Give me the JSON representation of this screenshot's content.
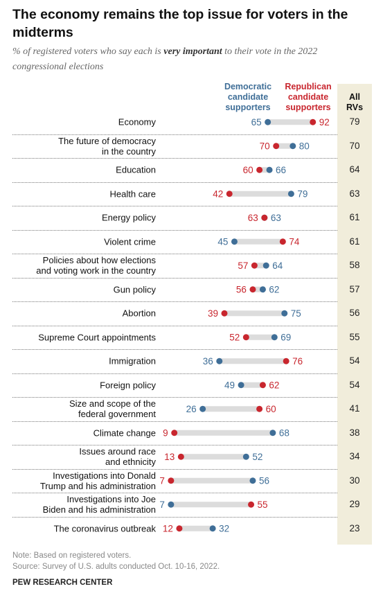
{
  "chart_data": {
    "type": "dumbbell",
    "title": "The economy remains the top issue for voters in the midterms",
    "subtitle": [
      "% of registered voters who say each is ",
      "very important",
      " to their vote in the 2022 congressional elections"
    ],
    "categories": [
      "Economy",
      "The future of democracy\nin the country",
      "Education",
      "Health care",
      "Energy policy",
      "Violent crime",
      "Policies about how elections\nand voting work in the country",
      "Gun policy",
      "Abortion",
      "Supreme Court appointments",
      "Immigration",
      "Foreign policy",
      "Size and scope of the\nfederal government",
      "Climate change",
      "Issues around race\nand ethnicity",
      "Investigations into Donald\nTrump and his administration",
      "Investigations into Joe\nBiden and his administration",
      "The coronavirus outbreak"
    ],
    "series": [
      {
        "name": "Democratic candidate supporters",
        "color": "#3f6e97",
        "values": [
          65,
          80,
          66,
          79,
          63,
          45,
          64,
          62,
          75,
          69,
          36,
          49,
          26,
          68,
          52,
          56,
          7,
          32
        ]
      },
      {
        "name": "Republican candidate supporters",
        "color": "#c8262e",
        "values": [
          92,
          70,
          60,
          42,
          63,
          74,
          57,
          56,
          39,
          52,
          76,
          62,
          60,
          9,
          13,
          7,
          55,
          12
        ]
      }
    ],
    "total": {
      "name": "All RVs",
      "values": [
        79,
        70,
        64,
        63,
        61,
        61,
        58,
        57,
        56,
        55,
        54,
        54,
        41,
        38,
        34,
        30,
        29,
        23
      ]
    },
    "notes": [
      "Note: Based on registered voters.",
      "Source: Survey of U.S. adults conducted Oct. 10-16, 2022."
    ],
    "source": "PEW RESEARCH CENTER"
  }
}
